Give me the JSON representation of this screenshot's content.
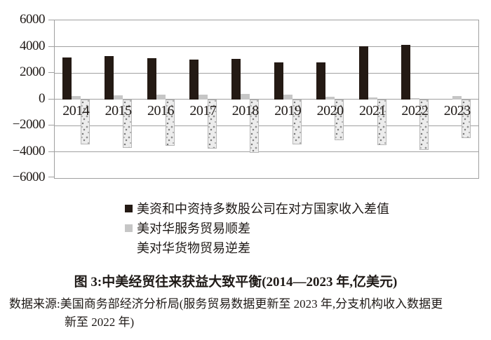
{
  "figure": {
    "title": "图 3:中美经贸往来获益大致平衡(2014—2023 年,亿美元)",
    "source_line1": "数据来源:美国商务部经济分析局(服务贸易数据更新至 2023 年,分支机构收入数据更",
    "source_line2": "新至 2022 年)"
  },
  "chart_data": {
    "type": "bar",
    "categories": [
      "2014",
      "2015",
      "2016",
      "2017",
      "2018",
      "2019",
      "2020",
      "2021",
      "2022",
      "2023"
    ],
    "series": [
      {
        "key": "income-gap",
        "name": "美资和中资持多数股公司在对方国家收入差值",
        "color": "#241a14",
        "values": [
          3200,
          3300,
          3100,
          3000,
          3080,
          2800,
          2820,
          4050,
          4150,
          null
        ]
      },
      {
        "key": "services-surplus",
        "name": "美对华服务贸易顺差",
        "color": "#c6c6c6",
        "values": [
          250,
          290,
          330,
          370,
          390,
          360,
          200,
          120,
          60,
          230
        ]
      },
      {
        "key": "goods-deficit",
        "name": "美对华货物贸易逆差",
        "pattern": "speckle",
        "color": "#ececec",
        "values": [
          -3450,
          -3700,
          -3550,
          -3750,
          -4100,
          -3450,
          -3100,
          -3500,
          -3850,
          -2950
        ]
      }
    ],
    "ylim": [
      -6000,
      6000
    ],
    "ytick_step": 2000,
    "grid": true,
    "legend_position": "below-plot",
    "axis_color": "#a0a0a0",
    "minus_sign": "−"
  }
}
